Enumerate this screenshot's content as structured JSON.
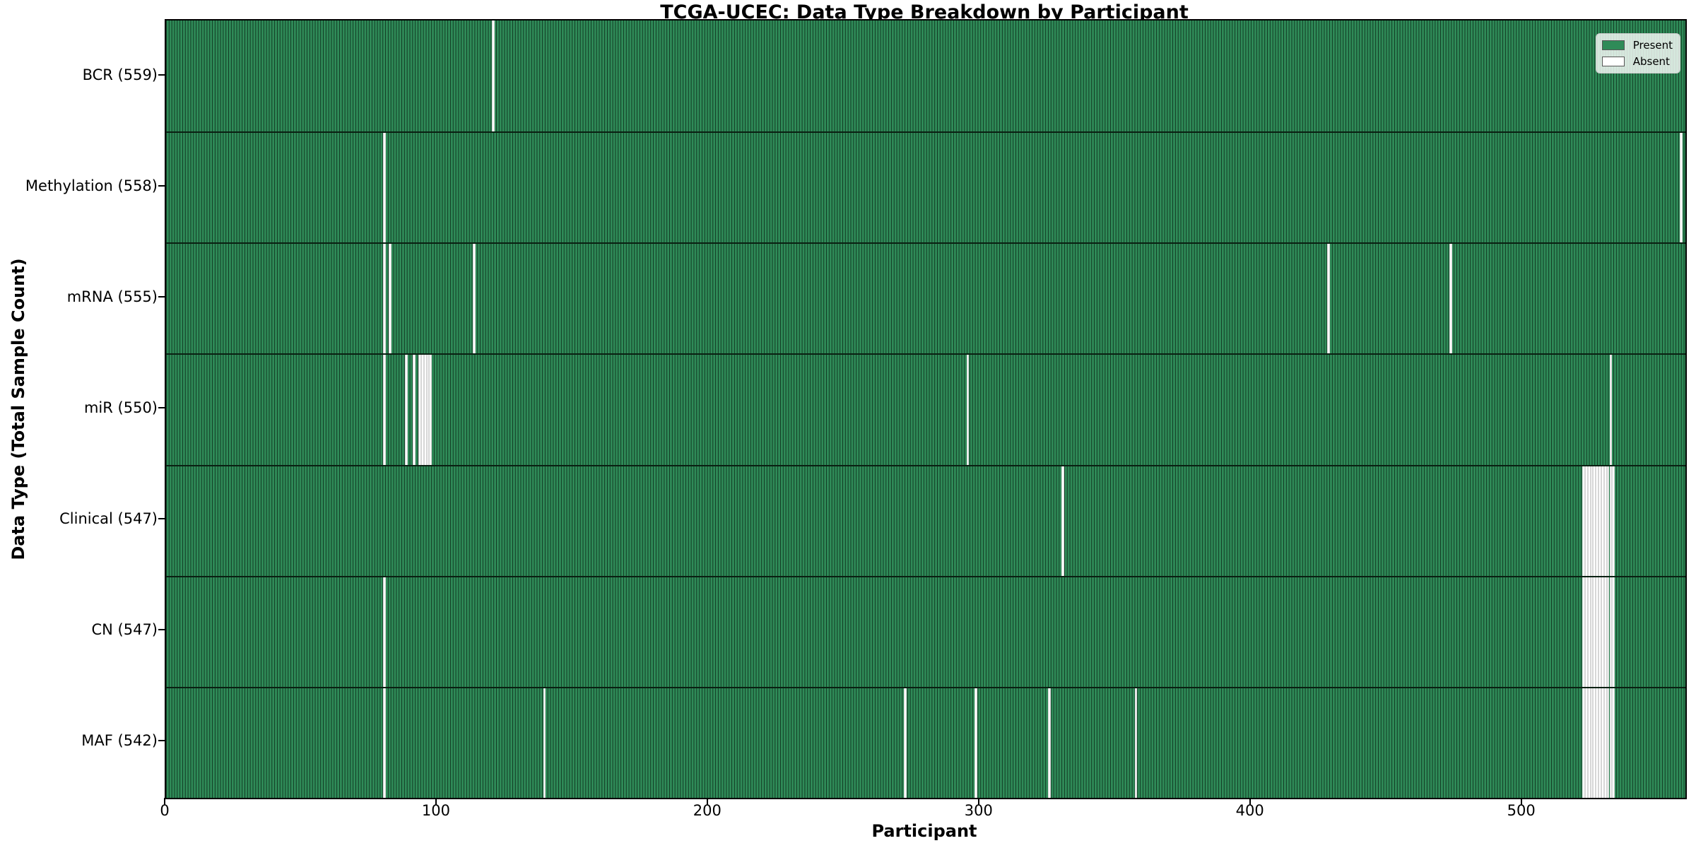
{
  "chart_data": {
    "type": "heatmap",
    "title": "TCGA-UCEC: Data Type Breakdown by Participant",
    "xlabel": "Participant",
    "ylabel": "Data Type (Total Sample Count)",
    "n_participants": 560,
    "xlim": [
      0,
      560
    ],
    "x_ticks": [
      0,
      100,
      200,
      300,
      400,
      500
    ],
    "grid": false,
    "legend_position": "upper right",
    "legend": [
      {
        "label": "Present",
        "color": "#2f8b58"
      },
      {
        "label": "Absent",
        "color": "#ffffff"
      }
    ],
    "colors": {
      "present_fill": "#2f8b58",
      "present_edge": "#113822",
      "absent_fill": "#ffffff",
      "absent_edge": "#d6d6d6",
      "row_separator": "#0a2012",
      "spine": "#000000"
    },
    "rows": [
      {
        "data_type": "BCR",
        "total_samples": 559,
        "label": "BCR (559)",
        "absent_participants": [
          120
        ]
      },
      {
        "data_type": "Methylation",
        "total_samples": 558,
        "label": "Methylation (558)",
        "absent_participants": [
          80,
          558
        ]
      },
      {
        "data_type": "mRNA",
        "total_samples": 555,
        "label": "mRNA (555)",
        "absent_participants": [
          80,
          82,
          113,
          428,
          473
        ]
      },
      {
        "data_type": "miR",
        "total_samples": 550,
        "label": "miR (550)",
        "absent_participants": [
          80,
          88,
          91,
          93,
          94,
          95,
          96,
          97,
          295,
          532
        ]
      },
      {
        "data_type": "Clinical",
        "total_samples": 547,
        "label": "Clinical (547)",
        "absent_participants": [
          330,
          522,
          523,
          524,
          525,
          526,
          527,
          528,
          529,
          530,
          531,
          532,
          533
        ]
      },
      {
        "data_type": "CN",
        "total_samples": 547,
        "label": "CN (547)",
        "absent_participants": [
          80,
          522,
          523,
          524,
          525,
          526,
          527,
          528,
          529,
          530,
          531,
          532,
          533
        ]
      },
      {
        "data_type": "MAF",
        "total_samples": 542,
        "label": "MAF (542)",
        "absent_participants": [
          80,
          139,
          272,
          298,
          325,
          357,
          522,
          523,
          524,
          525,
          526,
          527,
          528,
          529,
          530,
          531,
          532,
          533
        ]
      }
    ]
  }
}
